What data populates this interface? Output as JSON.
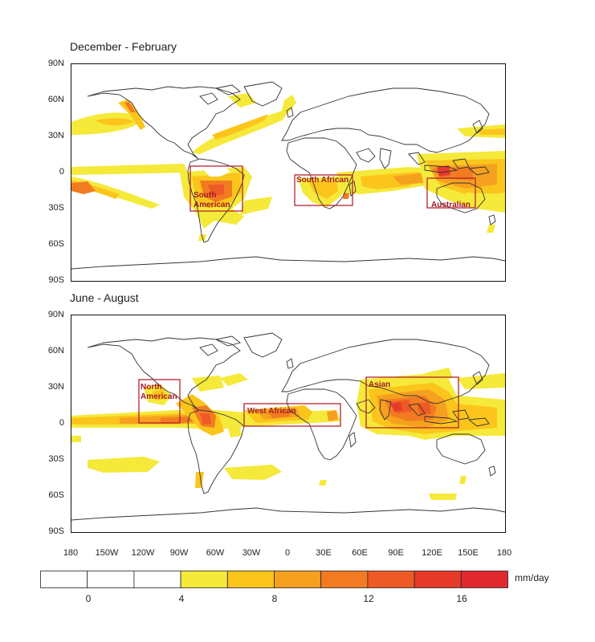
{
  "panels": [
    {
      "title": "December - February",
      "regions": [
        {
          "label": "South American",
          "lines": [
            "South",
            "American"
          ]
        },
        {
          "label": "South African",
          "lines": [
            "South African"
          ]
        },
        {
          "label": "Australian",
          "lines": [
            "Australian"
          ]
        }
      ]
    },
    {
      "title": "June - August",
      "regions": [
        {
          "label": "North American",
          "lines": [
            "North",
            "American"
          ]
        },
        {
          "label": "West African",
          "lines": [
            "West African"
          ]
        },
        {
          "label": "Asian",
          "lines": [
            "Asian"
          ]
        }
      ]
    }
  ],
  "lat_ticks": [
    "90N",
    "60N",
    "30N",
    "0",
    "30S",
    "60S",
    "90S"
  ],
  "lon_ticks": [
    "180",
    "150W",
    "120W",
    "90W",
    "60W",
    "30W",
    "0",
    "30E",
    "60E",
    "90E",
    "120E",
    "150E",
    "180"
  ],
  "colorbar": {
    "unit": "mm/day",
    "tick_labels": [
      "0",
      "4",
      "8",
      "12",
      "16"
    ],
    "colors": [
      "#ffffff",
      "#ffffff",
      "#ffffff",
      "#f5e93a",
      "#fbc51c",
      "#f6a01f",
      "#f27b22",
      "#ee5a26",
      "#e53a2a",
      "#e02a2f"
    ]
  },
  "colors": {
    "region_box": "#b5222e",
    "coast": "#333333"
  }
}
